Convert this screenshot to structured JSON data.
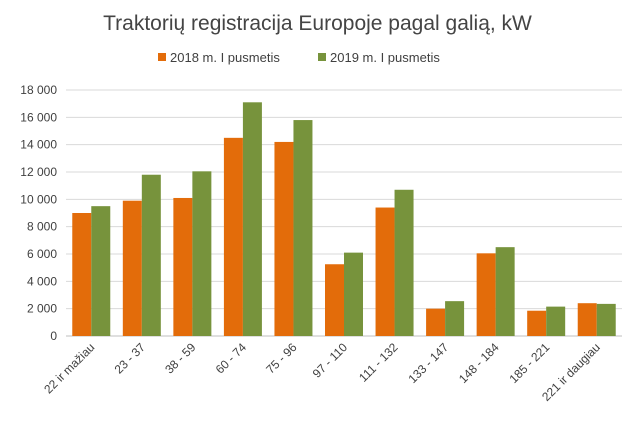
{
  "chart_data": {
    "type": "bar",
    "title": "Traktorių registracija Europoje pagal galią, kW",
    "xlabel": "",
    "ylabel": "",
    "categories": [
      "22 ir mažiau",
      "23 - 37",
      "38 - 59",
      "60 - 74",
      "75 - 96",
      "97 - 110",
      "111 - 132",
      "133 - 147",
      "148 - 184",
      "185 - 221",
      "221 ir daugiau"
    ],
    "series": [
      {
        "name": "2018 m. I pusmetis",
        "color": "#E36C0A",
        "values": [
          9000,
          9900,
          10100,
          14500,
          14200,
          5250,
          9400,
          2000,
          6050,
          1850,
          2400
        ]
      },
      {
        "name": "2019 m. I pusmetis",
        "color": "#77933C",
        "values": [
          9500,
          11800,
          12050,
          17100,
          15800,
          6100,
          10700,
          2550,
          6500,
          2150,
          2350
        ]
      }
    ],
    "ylim": [
      0,
      18000
    ],
    "yticks": [
      0,
      2000,
      4000,
      6000,
      8000,
      10000,
      12000,
      14000,
      16000,
      18000
    ],
    "ytick_labels": [
      "0",
      "2 000",
      "4 000",
      "6 000",
      "8 000",
      "10 000",
      "12 000",
      "14 000",
      "16 000",
      "18 000"
    ],
    "grid": true,
    "legend_position": "top"
  }
}
